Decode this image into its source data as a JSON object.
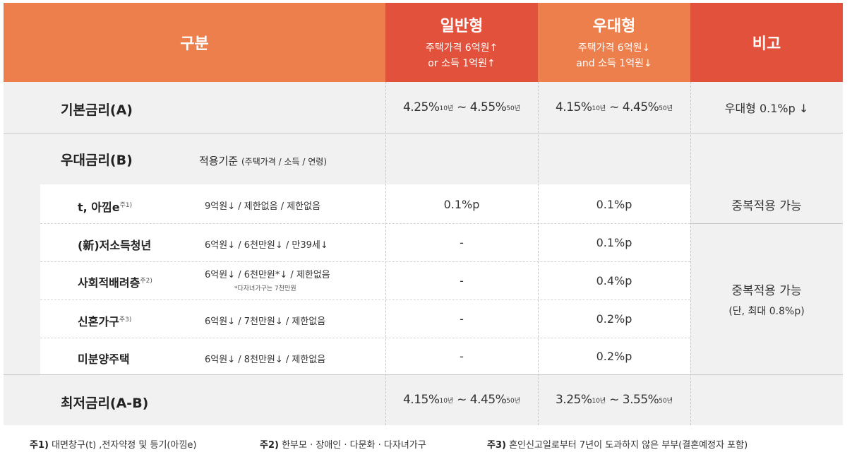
{
  "header": {
    "gubun": "구분",
    "general": {
      "title": "일반형",
      "line1": "주택가격 6억원↑",
      "line2": "or 소득 1억원↑"
    },
    "preferential": {
      "title": "우대형",
      "line1": "주택가격 6억원↓",
      "line2": "and 소득 1억원↓"
    },
    "note": "비고"
  },
  "base_rate": {
    "label": "기본금리(A)",
    "general": {
      "from": "4.25%",
      "from_term": "10년",
      "sep": " ~ ",
      "to": "4.55%",
      "to_term": "50년"
    },
    "preferential": {
      "from": "4.15%",
      "from_term": "10년",
      "sep": " ~ ",
      "to": "4.45%",
      "to_term": "50년"
    },
    "note": "우대형 0.1%p ↓"
  },
  "pref_rate": {
    "label": "우대금리(B)",
    "criteria_title": "적용기준",
    "criteria_detail": "(주택가격 / 소득 / 연령)",
    "rows": [
      {
        "label": "t, 아낌e",
        "mark": "주1)",
        "criteria": "9억원↓ / 제한없음 / 제한없음",
        "criteria_sub": "",
        "general": "0.1%p",
        "preferential": "0.1%p"
      },
      {
        "label": "(新)저소득청년",
        "mark": "",
        "criteria": "6억원↓ / 6천만원↓ / 만39세↓",
        "criteria_sub": "",
        "general": "-",
        "preferential": "0.1%p"
      },
      {
        "label": "사회적배려층",
        "mark": "주2)",
        "criteria": "6억원↓ / 6천만원*↓ / 제한없음",
        "criteria_sub": "*다자녀가구는 7천만원",
        "general": "-",
        "preferential": "0.4%p"
      },
      {
        "label": "신혼가구",
        "mark": "주3)",
        "criteria": "6억원↓ / 7천만원↓ / 제한없음",
        "criteria_sub": "",
        "general": "-",
        "preferential": "0.2%p"
      },
      {
        "label": "미분양주택",
        "mark": "",
        "criteria": "6억원↓ / 8천만원↓ / 제한없음",
        "criteria_sub": "",
        "general": "-",
        "preferential": "0.2%p"
      }
    ],
    "note1": "중복적용 가능",
    "note2_line1": "중복적용 가능",
    "note2_line2": "(단, 최대 0.8%p)"
  },
  "min_rate": {
    "label": "최저금리(A-B)",
    "general": {
      "from": "4.15%",
      "from_term": "10년",
      "sep": " ~ ",
      "to": "4.45%",
      "to_term": "50년"
    },
    "preferential": {
      "from": "3.25%",
      "from_term": "10년",
      "sep": " ~ ",
      "to": "3.55%",
      "to_term": "50년"
    }
  },
  "footnotes": [
    {
      "key": "주1)",
      "text": " 대면창구(t) ,전자약정 및 등기(아낌e)"
    },
    {
      "key": "주2)",
      "text": " 한부모 · 장애인 · 다문화 · 다자녀가구"
    },
    {
      "key": "주3)",
      "text": " 혼인신고일로부터 7년이 도과하지 않은 부부(결혼예정자 포함)"
    }
  ],
  "colors": {
    "orange": "#ed7f4c",
    "red": "#e2513b",
    "band": "#f1f1f1"
  }
}
